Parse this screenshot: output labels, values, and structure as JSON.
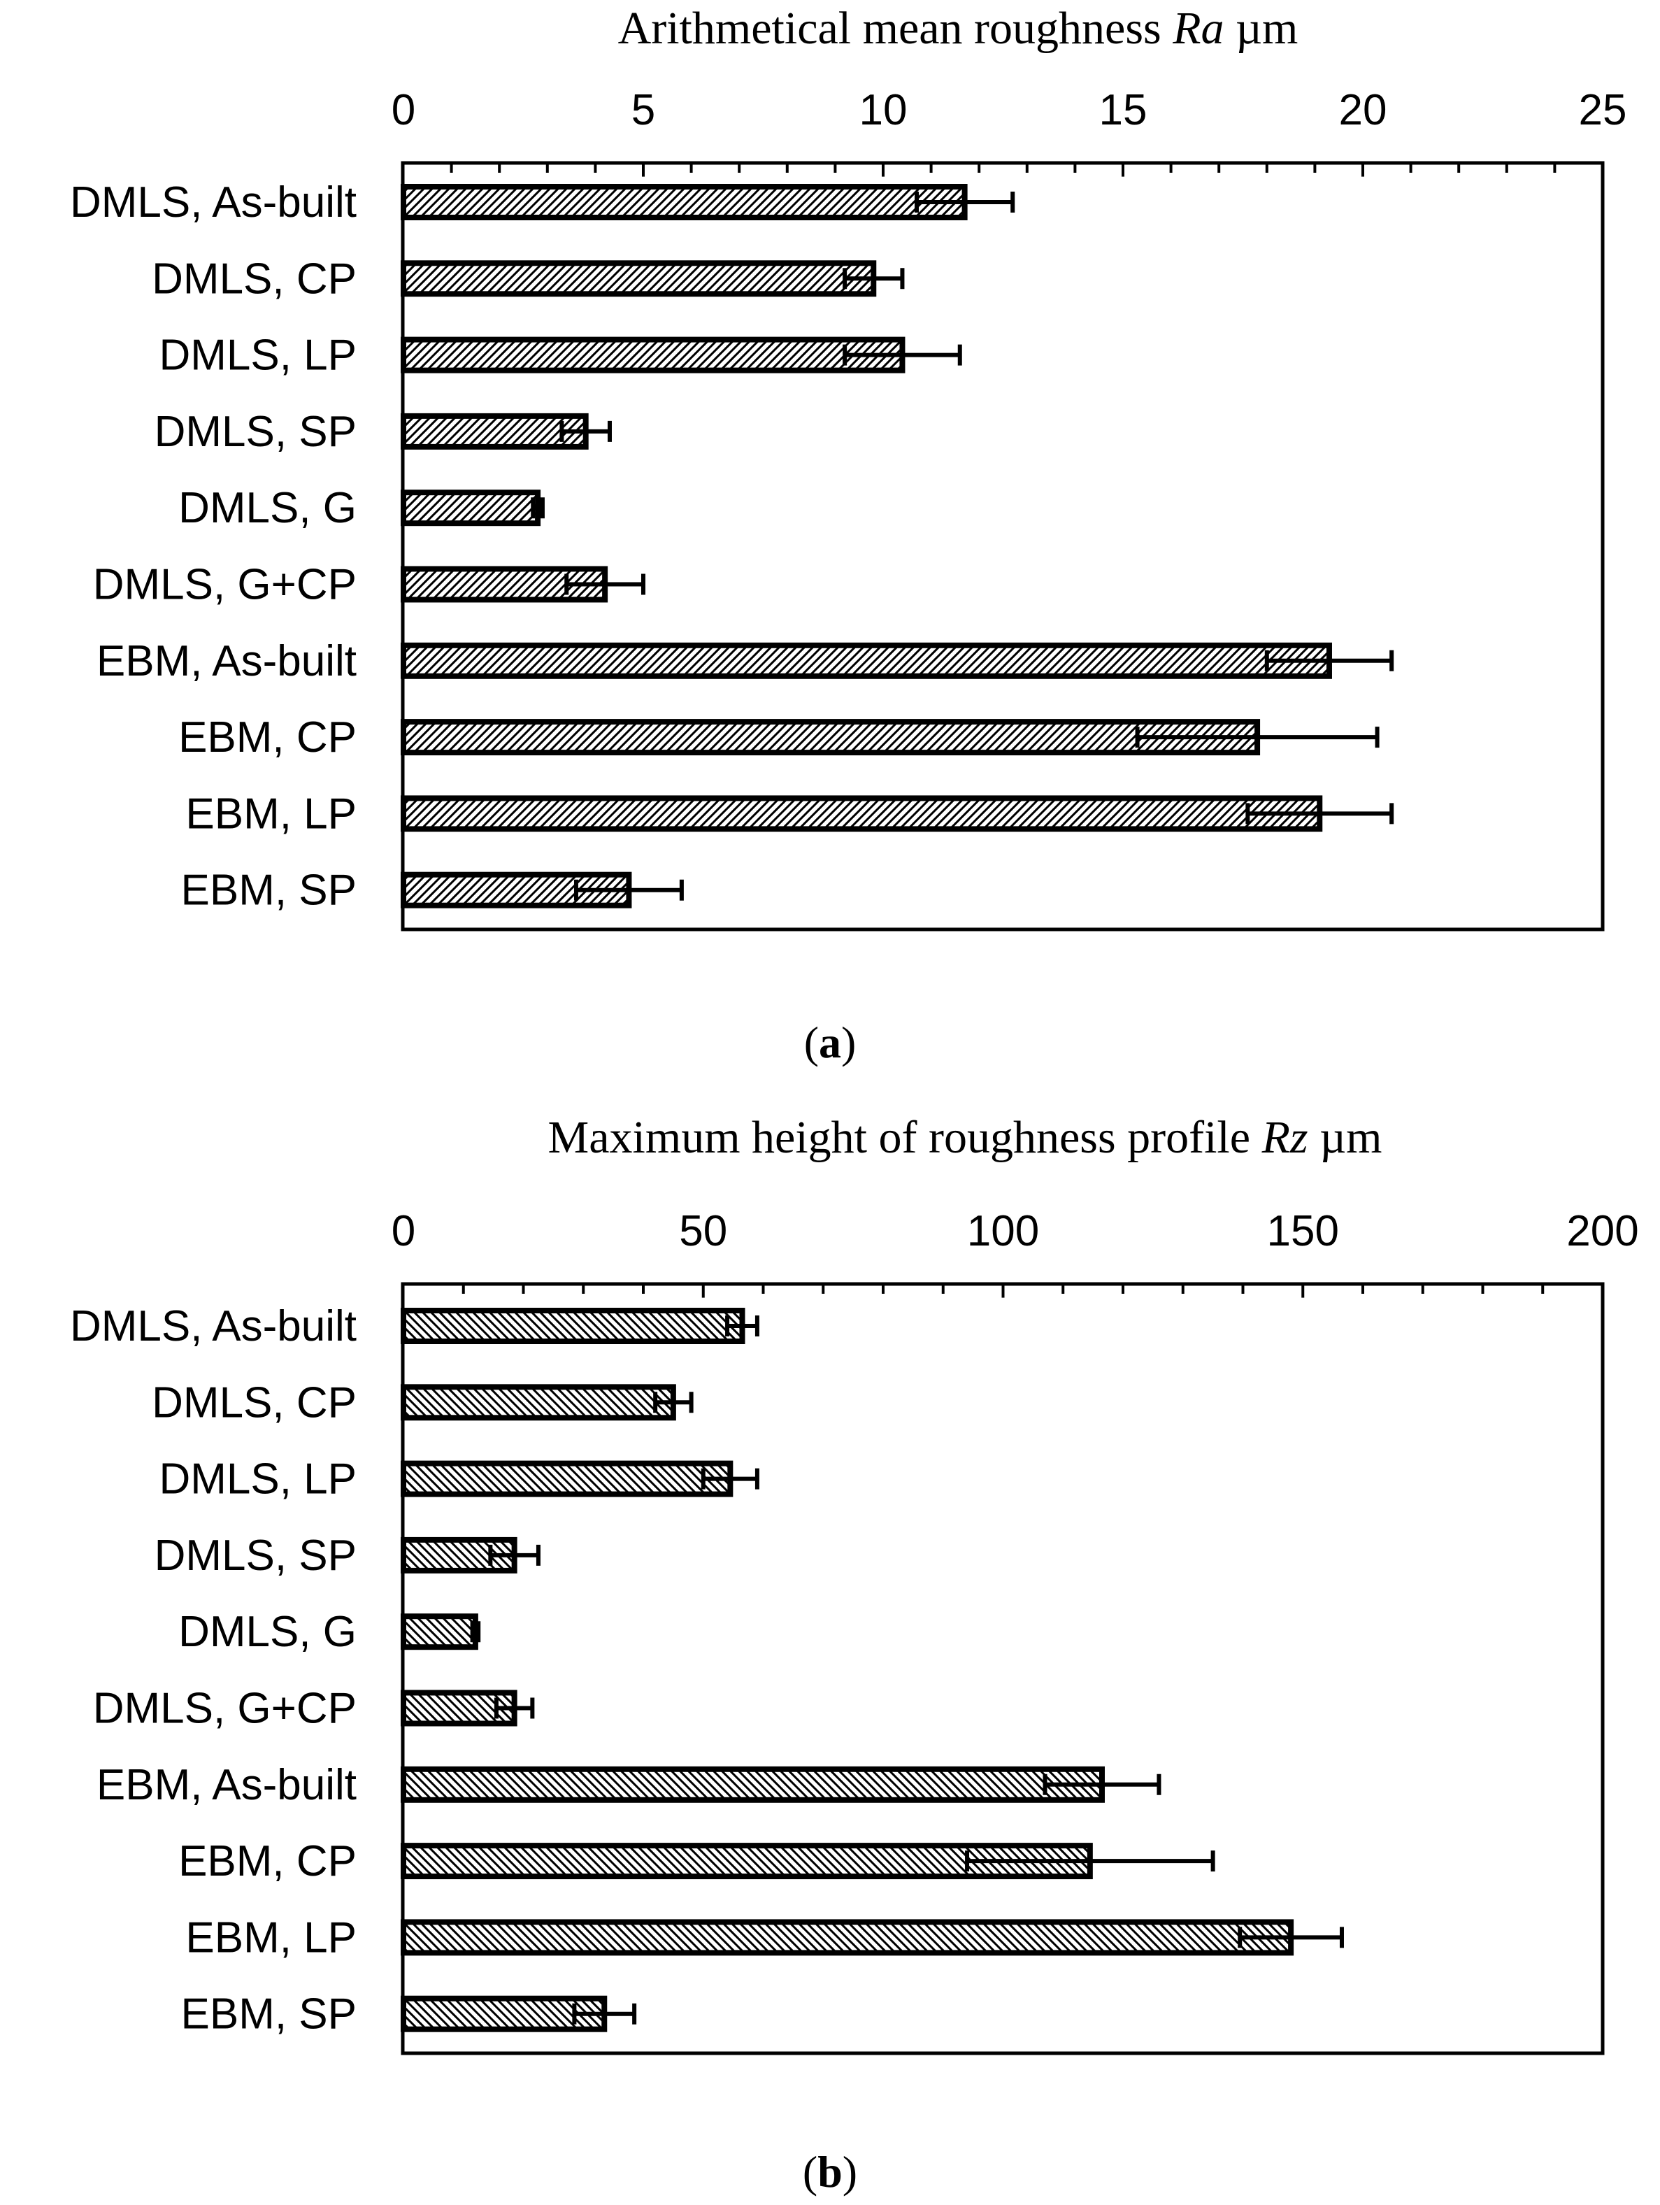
{
  "chart_data": [
    {
      "id": "a",
      "type": "bar",
      "orientation": "horizontal",
      "title_prefix": "Arithmetical mean roughness ",
      "title_symbol": "Ra",
      "title_unit": " µm",
      "caption_open": "(",
      "caption_letter": "a",
      "caption_close": ")",
      "xlim": [
        0,
        25
      ],
      "major_ticks": [
        0,
        5,
        10,
        15,
        20,
        25
      ],
      "tick_labels": [
        "0",
        "5",
        "10",
        "15",
        "20",
        "25"
      ],
      "minor_step": 1,
      "axis_position": "top",
      "hatch": "dense-diagonal",
      "categories": [
        "DMLS, As-built",
        "DMLS, CP",
        "DMLS, LP",
        "DMLS, SP",
        "DMLS, G",
        "DMLS, G+CP",
        "EBM, As-built",
        "EBM, CP",
        "EBM, LP",
        "EBM, SP"
      ],
      "values": [
        11.7,
        9.8,
        10.4,
        3.8,
        2.8,
        4.2,
        19.3,
        17.8,
        19.1,
        4.7
      ],
      "errors": [
        1.0,
        0.6,
        1.2,
        0.5,
        0.1,
        0.8,
        1.3,
        2.5,
        1.5,
        1.1
      ]
    },
    {
      "id": "b",
      "type": "bar",
      "orientation": "horizontal",
      "title_prefix": "Maximum height of roughness profile ",
      "title_symbol": "Rz",
      "title_unit": " µm",
      "caption_open": "(",
      "caption_letter": "b",
      "caption_close": ")",
      "xlim": [
        0,
        200
      ],
      "major_ticks": [
        0,
        50,
        100,
        150,
        200
      ],
      "tick_labels": [
        "0",
        "50",
        "100",
        "150",
        "200"
      ],
      "minor_step": 10,
      "axis_position": "top",
      "hatch": "diagonal",
      "categories": [
        "DMLS, As-built",
        "DMLS, CP",
        "DMLS, LP",
        "DMLS, SP",
        "DMLS, G",
        "DMLS, G+CP",
        "EBM, As-built",
        "EBM, CP",
        "EBM, LP",
        "EBM, SP"
      ],
      "values": [
        56.5,
        45.0,
        54.5,
        18.5,
        12.0,
        18.5,
        116.5,
        114.5,
        148.0,
        33.5
      ],
      "errors": [
        2.5,
        3.0,
        4.5,
        4.0,
        0.5,
        3.0,
        9.5,
        20.5,
        8.5,
        5.0
      ]
    }
  ],
  "colors": {
    "bar_fill": "#ffffff",
    "hatch": "#000000",
    "stroke": "#000000",
    "text": "#000000"
  }
}
